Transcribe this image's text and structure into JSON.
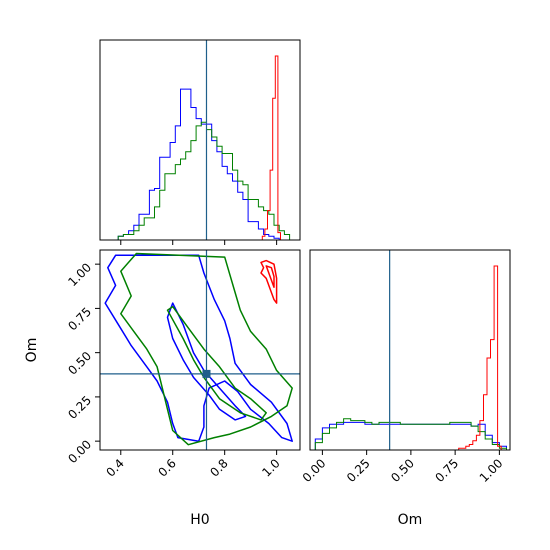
{
  "chart_data": [
    {
      "type": "step-histogram",
      "panel": "H0 marginal",
      "xlabel": "",
      "ylabel": "",
      "xlim": [
        0.32,
        1.09
      ],
      "x_ticks": [
        0.4,
        0.6,
        0.8,
        1.0
      ],
      "x_tick_labels_shown": false,
      "y_ticks_shown": false,
      "truth_line": {
        "x": 0.73,
        "color": "#1f5f8b"
      },
      "series": [
        {
          "color": "#0000ff",
          "x": [
            0.34,
            0.36,
            0.38,
            0.4,
            0.42,
            0.44,
            0.46,
            0.48,
            0.5,
            0.52,
            0.54,
            0.56,
            0.58,
            0.6,
            0.62,
            0.64,
            0.66,
            0.68,
            0.7,
            0.72,
            0.74,
            0.76,
            0.78,
            0.8,
            0.82,
            0.84,
            0.86,
            0.88,
            0.9,
            0.92,
            0.94,
            0.96,
            0.98,
            1.0,
            1.02,
            1.04,
            1.06
          ],
          "values": [
            0,
            0,
            0,
            0.02,
            0.03,
            0.05,
            0.08,
            0.14,
            0.14,
            0.27,
            0.28,
            0.45,
            0.45,
            0.53,
            0.62,
            0.82,
            0.82,
            0.72,
            0.66,
            0.63,
            0.63,
            0.54,
            0.48,
            0.4,
            0.36,
            0.32,
            0.26,
            0.22,
            0.1,
            0.1,
            0.06,
            0.03,
            0.02,
            0.01,
            0,
            0,
            0
          ]
        },
        {
          "color": "#008000",
          "x": [
            0.34,
            0.36,
            0.38,
            0.4,
            0.42,
            0.44,
            0.46,
            0.48,
            0.5,
            0.52,
            0.54,
            0.56,
            0.58,
            0.6,
            0.62,
            0.64,
            0.66,
            0.68,
            0.7,
            0.72,
            0.74,
            0.76,
            0.78,
            0.8,
            0.82,
            0.84,
            0.86,
            0.88,
            0.9,
            0.92,
            0.94,
            0.96,
            0.98,
            1.0,
            1.02,
            1.04,
            1.06
          ],
          "values": [
            0,
            0,
            0,
            0.02,
            0.03,
            0.03,
            0.05,
            0.08,
            0.12,
            0.12,
            0.18,
            0.27,
            0.36,
            0.36,
            0.41,
            0.44,
            0.48,
            0.54,
            0.62,
            0.64,
            0.6,
            0.56,
            0.51,
            0.47,
            0.47,
            0.38,
            0.32,
            0.3,
            0.22,
            0.22,
            0.18,
            0.16,
            0.14,
            0.08,
            0.05,
            0.03,
            0
          ]
        },
        {
          "color": "#ff0000",
          "x": [
            0.95,
            0.96,
            0.97,
            0.98,
            0.99,
            1.0,
            1.01
          ],
          "values": [
            0.02,
            0.06,
            0.16,
            0.38,
            0.77,
            1.0,
            0.04
          ]
        }
      ]
    },
    {
      "type": "contour",
      "panel": "H0 vs Om joint",
      "xlabel": "H0",
      "ylabel": "Om",
      "xlim": [
        0.32,
        1.09
      ],
      "ylim": [
        -0.05,
        1.08
      ],
      "x_ticks": [
        0.4,
        0.6,
        0.8,
        1.0
      ],
      "x_tick_labels": [
        "0.4",
        "0.6",
        "0.8",
        "1.0"
      ],
      "y_ticks": [
        0.0,
        0.25,
        0.5,
        0.75,
        1.0
      ],
      "y_tick_labels": [
        "0.00",
        "0.25",
        "0.50",
        "0.75",
        "1.00"
      ],
      "truth_point": {
        "x": 0.73,
        "y": 0.38
      },
      "contours": [
        {
          "color": "#0000ff",
          "points": [
            [
              0.38,
              1.05
            ],
            [
              0.35,
              0.98
            ],
            [
              0.38,
              0.88
            ],
            [
              0.34,
              0.78
            ],
            [
              0.39,
              0.66
            ],
            [
              0.44,
              0.54
            ],
            [
              0.5,
              0.42
            ],
            [
              0.54,
              0.34
            ],
            [
              0.58,
              0.22
            ],
            [
              0.6,
              0.1
            ],
            [
              0.62,
              0.02
            ],
            [
              0.7,
              0.0
            ],
            [
              0.72,
              0.08
            ],
            [
              0.72,
              0.2
            ],
            [
              0.74,
              0.3
            ],
            [
              0.8,
              0.34
            ],
            [
              0.85,
              0.28
            ],
            [
              0.9,
              0.18
            ],
            [
              0.97,
              0.1
            ],
            [
              1.02,
              0.02
            ],
            [
              1.06,
              0.0
            ],
            [
              1.04,
              0.1
            ],
            [
              0.98,
              0.22
            ],
            [
              0.9,
              0.32
            ],
            [
              0.84,
              0.44
            ],
            [
              0.82,
              0.58
            ],
            [
              0.8,
              0.68
            ],
            [
              0.76,
              0.8
            ],
            [
              0.72,
              0.95
            ],
            [
              0.7,
              1.05
            ]
          ]
        },
        {
          "color": "#0000ff",
          "points": [
            [
              0.6,
              0.78
            ],
            [
              0.64,
              0.66
            ],
            [
              0.68,
              0.5
            ],
            [
              0.72,
              0.4
            ],
            [
              0.78,
              0.3
            ],
            [
              0.84,
              0.2
            ],
            [
              0.88,
              0.14
            ],
            [
              0.84,
              0.12
            ],
            [
              0.78,
              0.18
            ],
            [
              0.74,
              0.26
            ],
            [
              0.68,
              0.36
            ],
            [
              0.64,
              0.46
            ],
            [
              0.6,
              0.58
            ],
            [
              0.58,
              0.7
            ]
          ]
        },
        {
          "color": "#008000",
          "points": [
            [
              0.46,
              1.06
            ],
            [
              0.4,
              0.96
            ],
            [
              0.44,
              0.82
            ],
            [
              0.4,
              0.72
            ],
            [
              0.45,
              0.62
            ],
            [
              0.5,
              0.52
            ],
            [
              0.54,
              0.42
            ],
            [
              0.56,
              0.3
            ],
            [
              0.58,
              0.18
            ],
            [
              0.6,
              0.06
            ],
            [
              0.66,
              -0.02
            ],
            [
              0.76,
              0.02
            ],
            [
              0.82,
              0.04
            ],
            [
              0.9,
              0.08
            ],
            [
              0.98,
              0.14
            ],
            [
              1.04,
              0.2
            ],
            [
              1.06,
              0.3
            ],
            [
              1.0,
              0.4
            ],
            [
              0.96,
              0.52
            ],
            [
              0.9,
              0.62
            ],
            [
              0.86,
              0.74
            ],
            [
              0.84,
              0.84
            ],
            [
              0.82,
              0.94
            ],
            [
              0.8,
              1.04
            ]
          ]
        },
        {
          "color": "#008000",
          "points": [
            [
              0.58,
              0.74
            ],
            [
              0.64,
              0.58
            ],
            [
              0.68,
              0.46
            ],
            [
              0.72,
              0.36
            ],
            [
              0.78,
              0.24
            ],
            [
              0.86,
              0.16
            ],
            [
              0.94,
              0.12
            ],
            [
              0.96,
              0.16
            ],
            [
              0.9,
              0.24
            ],
            [
              0.84,
              0.3
            ],
            [
              0.78,
              0.42
            ],
            [
              0.72,
              0.52
            ],
            [
              0.66,
              0.64
            ],
            [
              0.6,
              0.76
            ]
          ]
        },
        {
          "color": "#ff0000",
          "points": [
            [
              0.94,
              1.01
            ],
            [
              0.95,
              0.98
            ],
            [
              0.94,
              0.95
            ],
            [
              0.96,
              0.92
            ],
            [
              0.97,
              0.88
            ],
            [
              0.98,
              0.84
            ],
            [
              0.99,
              0.8
            ],
            [
              1.0,
              0.78
            ],
            [
              1.0,
              0.84
            ],
            [
              1.0,
              0.92
            ],
            [
              0.99,
              1.0
            ],
            [
              0.96,
              1.02
            ]
          ]
        },
        {
          "color": "#ff0000",
          "points": [
            [
              0.96,
              0.99
            ],
            [
              0.97,
              0.95
            ],
            [
              0.98,
              0.91
            ],
            [
              0.99,
              0.87
            ],
            [
              0.99,
              0.93
            ],
            [
              0.98,
              0.98
            ]
          ]
        }
      ]
    },
    {
      "type": "step-histogram",
      "panel": "Om marginal",
      "xlabel": "Om",
      "ylabel": "",
      "xlim": [
        -0.07,
        1.06
      ],
      "x_ticks": [
        0.0,
        0.25,
        0.5,
        0.75,
        1.0
      ],
      "x_tick_labels": [
        "0.00",
        "0.25",
        "0.50",
        "0.75",
        "1.00"
      ],
      "y_ticks_shown": false,
      "truth_line": {
        "x": 0.38,
        "color": "#1f5f8b"
      },
      "series": [
        {
          "color": "#0000ff",
          "x": [
            -0.02,
            0.02,
            0.06,
            0.1,
            0.14,
            0.18,
            0.22,
            0.26,
            0.3,
            0.34,
            0.38,
            0.42,
            0.46,
            0.5,
            0.54,
            0.58,
            0.62,
            0.66,
            0.7,
            0.74,
            0.78,
            0.82,
            0.86,
            0.9,
            0.94,
            0.98,
            1.02
          ],
          "values": [
            0.06,
            0.12,
            0.14,
            0.14,
            0.15,
            0.15,
            0.15,
            0.14,
            0.14,
            0.14,
            0.14,
            0.14,
            0.14,
            0.14,
            0.14,
            0.14,
            0.14,
            0.14,
            0.14,
            0.14,
            0.14,
            0.14,
            0.13,
            0.14,
            0.08,
            0.04,
            0.02
          ]
        },
        {
          "color": "#008000",
          "x": [
            -0.02,
            0.02,
            0.06,
            0.1,
            0.14,
            0.18,
            0.22,
            0.26,
            0.3,
            0.34,
            0.38,
            0.42,
            0.46,
            0.5,
            0.54,
            0.58,
            0.62,
            0.66,
            0.7,
            0.74,
            0.78,
            0.82,
            0.86,
            0.9,
            0.94,
            0.98,
            1.02
          ],
          "values": [
            0.04,
            0.09,
            0.12,
            0.15,
            0.17,
            0.16,
            0.16,
            0.15,
            0.14,
            0.15,
            0.15,
            0.15,
            0.14,
            0.14,
            0.14,
            0.14,
            0.14,
            0.14,
            0.14,
            0.15,
            0.15,
            0.15,
            0.13,
            0.1,
            0.06,
            0.03,
            0.01
          ]
        },
        {
          "color": "#ff0000",
          "x": [
            0.76,
            0.78,
            0.8,
            0.82,
            0.84,
            0.86,
            0.88,
            0.9,
            0.92,
            0.94,
            0.96,
            0.98,
            1.0
          ],
          "values": [
            0.0,
            0.01,
            0.01,
            0.02,
            0.03,
            0.05,
            0.08,
            0.16,
            0.3,
            0.5,
            0.6,
            1.0,
            0.02
          ]
        }
      ]
    }
  ]
}
